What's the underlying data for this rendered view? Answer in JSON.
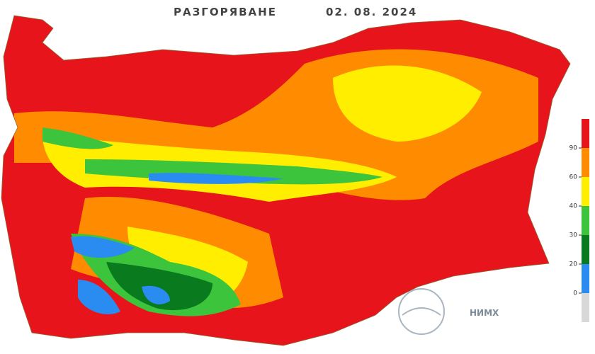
{
  "header": {
    "title": "РАЗГОРЯВАНЕ",
    "date": "02. 08. 2024"
  },
  "legend": {
    "colors": [
      "#e8141b",
      "#ff8c00",
      "#ffee00",
      "#3cc43c",
      "#0a7a1e",
      "#2a8cf0",
      "#d8d8d8"
    ],
    "ticks": [
      90,
      60,
      40,
      30,
      20,
      0
    ]
  },
  "logo": {
    "text": "НИМХ"
  }
}
